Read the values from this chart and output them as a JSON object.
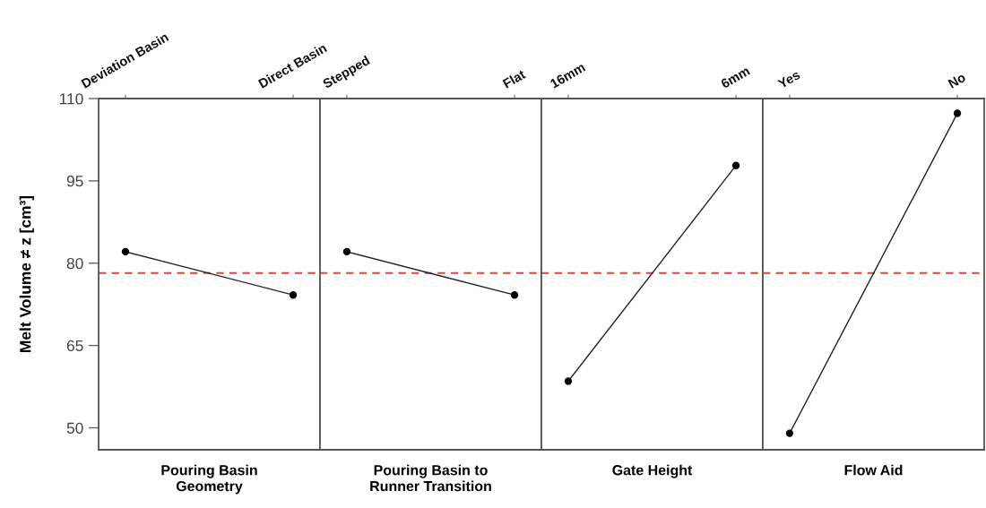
{
  "chart_data": [
    {
      "type": "line",
      "categories": [
        "Deviation Basin",
        "Direct Basin"
      ],
      "series": [
        {
          "color": "#222222",
          "values": [
            82.1,
            74.2
          ]
        }
      ],
      "xlabel": "Pouring Basin\nGeometry",
      "ylabel": "Melt Volume ≠ z [cm³]",
      "ylim": [
        46,
        110
      ],
      "yticks": [
        50,
        65,
        80,
        95,
        110
      ],
      "marker": "circle",
      "ref_lines": [
        {
          "axis": "y",
          "value": 78.2,
          "color": "#e8413a",
          "line_style": "dashed"
        }
      ]
    },
    {
      "type": "line",
      "categories": [
        "Stepped",
        "Flat"
      ],
      "series": [
        {
          "color": "#222222",
          "values": [
            82.1,
            74.2
          ]
        }
      ],
      "xlabel": "Pouring Basin to\nRunner Transition",
      "ylim": [
        46,
        110
      ],
      "tick_labels": "x",
      "marker": "circle",
      "ref_lines": [
        {
          "axis": "y",
          "value": 78.2,
          "color": "#e8413a",
          "line_style": "dashed"
        }
      ]
    },
    {
      "type": "line",
      "categories": [
        "16mm",
        "6mm"
      ],
      "series": [
        {
          "color": "#222222",
          "values": [
            58.5,
            97.8
          ]
        }
      ],
      "xlabel": "Gate Height",
      "ylim": [
        46,
        110
      ],
      "tick_labels": "x",
      "marker": "circle",
      "ref_lines": [
        {
          "axis": "y",
          "value": 78.2,
          "color": "#e8413a",
          "line_style": "dashed"
        }
      ]
    },
    {
      "type": "line",
      "categories": [
        "Yes",
        "No"
      ],
      "series": [
        {
          "color": "#222222",
          "values": [
            49.0,
            107.3
          ]
        }
      ],
      "xlabel": "Flow Aid",
      "ylim": [
        46,
        110
      ],
      "tick_labels": "x",
      "marker": "circle",
      "ref_lines": [
        {
          "axis": "y",
          "value": 78.2,
          "color": "#e8413a",
          "line_style": "dashed"
        }
      ]
    }
  ]
}
